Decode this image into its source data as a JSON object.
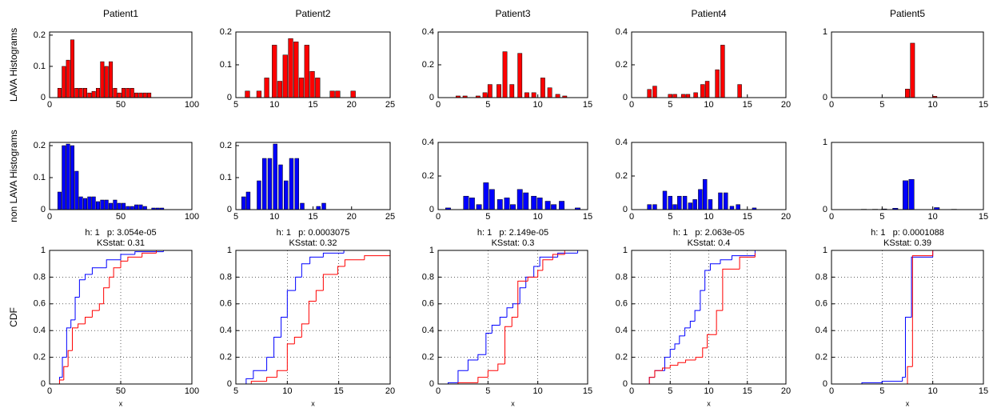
{
  "chart_data": [
    {
      "type": "bar",
      "title": "Patient1",
      "ylabel": "LAVA Histograms",
      "color": "#ff0000",
      "x": [
        7,
        10,
        13,
        16,
        19,
        22,
        25,
        28,
        31,
        34,
        37,
        40,
        43,
        46,
        49,
        52,
        55,
        58,
        61,
        64,
        67,
        70
      ],
      "values": [
        0.03,
        0.1,
        0.12,
        0.185,
        0.03,
        0.03,
        0.03,
        0.015,
        0.02,
        0.03,
        0.115,
        0.1,
        0.115,
        0.03,
        0.015,
        0.03,
        0.03,
        0.03,
        0.015,
        0.015,
        0.015,
        0.015
      ],
      "xlim": [
        0,
        100
      ],
      "xticks": [
        0,
        50,
        100
      ],
      "ylim": [
        0,
        0.21
      ],
      "yticks": [
        0,
        0.1,
        0.2
      ]
    },
    {
      "type": "bar",
      "title": "Patient2",
      "color": "#ff0000",
      "x": [
        6.5,
        8,
        9,
        10,
        10.7,
        11.4,
        12.1,
        12.8,
        13.5,
        14.2,
        14.9,
        15.6,
        17.5,
        18.2,
        20.2
      ],
      "values": [
        0.02,
        0.02,
        0.06,
        0.16,
        0.05,
        0.13,
        0.18,
        0.17,
        0.06,
        0.16,
        0.08,
        0.06,
        0.02,
        0.02,
        0.02
      ],
      "xlim": [
        5,
        25
      ],
      "xticks": [
        5,
        10,
        15,
        20,
        25
      ],
      "ylim": [
        0,
        0.2
      ],
      "yticks": [
        0,
        0.1,
        0.2
      ]
    },
    {
      "type": "bar",
      "title": "Patient3",
      "color": "#ff0000",
      "x": [
        2,
        2.7,
        4,
        4.7,
        5.2,
        6.1,
        6.7,
        7.4,
        8.2,
        8.9,
        9.6,
        10.5,
        11.2,
        12,
        12.7
      ],
      "values": [
        0.01,
        0.01,
        0.01,
        0.03,
        0.08,
        0.08,
        0.28,
        0.08,
        0.27,
        0.03,
        0.03,
        0.12,
        0.06,
        0.02,
        0.01
      ],
      "xlim": [
        0,
        15
      ],
      "xticks": [
        0,
        5,
        10,
        15
      ],
      "ylim": [
        0,
        0.4
      ],
      "yticks": [
        0,
        0.2,
        0.4
      ]
    },
    {
      "type": "bar",
      "title": "Patient4",
      "color": "#ff0000",
      "x": [
        2.3,
        3,
        5,
        5.6,
        6.7,
        7.3,
        8.3,
        9.2,
        9.8,
        11.1,
        11.8,
        14
      ],
      "values": [
        0.05,
        0.07,
        0.02,
        0.02,
        0.02,
        0.02,
        0.03,
        0.08,
        0.1,
        0.17,
        0.32,
        0.08
      ],
      "xlim": [
        0,
        20
      ],
      "xticks": [
        0,
        5,
        10,
        15,
        20
      ],
      "ylim": [
        0,
        0.4
      ],
      "yticks": [
        0,
        0.2,
        0.4
      ]
    },
    {
      "type": "bar",
      "title": "Patient5",
      "color": "#ff0000",
      "x": [
        7.5,
        8,
        10.2
      ],
      "values": [
        0.13,
        0.83,
        0.02
      ],
      "xlim": [
        0,
        15
      ],
      "xticks": [
        0,
        5,
        10,
        15
      ],
      "ylim": [
        0,
        1
      ],
      "yticks": [
        0,
        1
      ]
    },
    {
      "type": "bar",
      "ylabel": "non LAVA Histograms",
      "color": "#0000ff",
      "x": [
        7,
        10,
        13,
        16,
        19,
        22,
        25,
        28,
        31,
        34,
        37,
        40,
        43,
        46,
        49,
        52,
        55,
        58,
        61,
        64,
        67,
        73,
        76,
        79
      ],
      "values": [
        0.055,
        0.2,
        0.205,
        0.2,
        0.12,
        0.04,
        0.035,
        0.04,
        0.04,
        0.025,
        0.03,
        0.03,
        0.02,
        0.03,
        0.02,
        0.02,
        0.01,
        0.01,
        0.015,
        0.015,
        0.01,
        0.005,
        0.005,
        0.005
      ],
      "xlim": [
        0,
        100
      ],
      "xticks": [
        0,
        50,
        100
      ],
      "ylim": [
        0,
        0.21
      ],
      "yticks": [
        0,
        0.1,
        0.2
      ]
    },
    {
      "type": "bar",
      "color": "#0000ff",
      "x": [
        6,
        6.6,
        8,
        8.7,
        9.4,
        10.1,
        10.8,
        11.5,
        12.2,
        12.9,
        13.6,
        15.7,
        16.4
      ],
      "values": [
        0.04,
        0.055,
        0.09,
        0.16,
        0.16,
        0.205,
        0.14,
        0.09,
        0.16,
        0.16,
        0.02,
        0.01,
        0.02
      ],
      "xlim": [
        5,
        25
      ],
      "xticks": [
        5,
        10,
        15,
        20,
        25
      ],
      "ylim": [
        0,
        0.21
      ],
      "yticks": [
        0,
        0.1,
        0.2
      ]
    },
    {
      "type": "bar",
      "color": "#0000ff",
      "x": [
        1,
        2.8,
        3.4,
        4.1,
        4.8,
        5.4,
        6.2,
        6.9,
        7.5,
        8.2,
        8.8,
        9.6,
        10.2,
        11,
        11.6,
        12.4,
        14
      ],
      "values": [
        0.01,
        0.08,
        0.07,
        0.03,
        0.16,
        0.12,
        0.06,
        0.07,
        0.03,
        0.12,
        0.1,
        0.08,
        0.07,
        0.05,
        0.03,
        0.05,
        0.01
      ],
      "xlim": [
        0,
        15
      ],
      "xticks": [
        0,
        5,
        10,
        15
      ],
      "ylim": [
        0,
        0.4
      ],
      "yticks": [
        0,
        0.2,
        0.4
      ]
    },
    {
      "type": "bar",
      "color": "#0000ff",
      "x": [
        2.3,
        3,
        4.3,
        5,
        5.6,
        6.2,
        6.9,
        7.6,
        8.2,
        8.9,
        9.5,
        10.2,
        11.5,
        12.2,
        13,
        13.8,
        15.9
      ],
      "values": [
        0.03,
        0.03,
        0.11,
        0.08,
        0.03,
        0.08,
        0.08,
        0.04,
        0.06,
        0.12,
        0.18,
        0.06,
        0.1,
        0.1,
        0.02,
        0.03,
        0.01
      ],
      "xlim": [
        0,
        20
      ],
      "xticks": [
        0,
        5,
        10,
        15,
        20
      ],
      "ylim": [
        0,
        0.4
      ],
      "yticks": [
        0,
        0.2,
        0.4
      ]
    },
    {
      "type": "bar",
      "color": "#0000ff",
      "x": [
        3.2,
        4.3,
        5.2,
        6.3,
        7.3,
        7.9,
        10.4,
        12.1
      ],
      "values": [
        0.005,
        0.005,
        0.01,
        0.02,
        0.43,
        0.45,
        0.03,
        0.005
      ],
      "xlim": [
        0,
        15
      ],
      "xticks": [
        0,
        5,
        10,
        15
      ],
      "ylim": [
        0,
        1
      ],
      "yticks": [
        0,
        1
      ]
    },
    {
      "type": "line",
      "title": "h: 1   p: 3.054e-05",
      "subtitle": "KSstat: 0.31",
      "ylabel": "CDF",
      "xlabel": "x",
      "grid": true,
      "series": [
        {
          "color": "#0000ff",
          "x": [
            5,
            7,
            9,
            12,
            15,
            18,
            21,
            25,
            30,
            40,
            50,
            60,
            80
          ],
          "values": [
            0,
            0.05,
            0.2,
            0.42,
            0.48,
            0.65,
            0.78,
            0.82,
            0.87,
            0.93,
            0.97,
            0.99,
            1
          ]
        },
        {
          "color": "#ff0000",
          "x": [
            7,
            10,
            13,
            16,
            20,
            25,
            30,
            35,
            38,
            42,
            45,
            50,
            55,
            65,
            75
          ],
          "values": [
            0.03,
            0.13,
            0.25,
            0.42,
            0.45,
            0.5,
            0.55,
            0.6,
            0.72,
            0.8,
            0.87,
            0.92,
            0.95,
            0.98,
            1
          ]
        }
      ],
      "xlim": [
        0,
        100
      ],
      "xticks": [
        0,
        50,
        100
      ],
      "ylim": [
        0,
        1
      ],
      "yticks": [
        0,
        0.2,
        0.4,
        0.6,
        0.8,
        1
      ]
    },
    {
      "type": "line",
      "title": "h: 1   p: 0.0003075",
      "subtitle": "KSstat: 0.32",
      "xlabel": "x",
      "grid": true,
      "series": [
        {
          "color": "#0000ff",
          "x": [
            6,
            6.7,
            8,
            8.7,
            9.4,
            10,
            10.8,
            11.4,
            12.2,
            13.5,
            15.5
          ],
          "values": [
            0.04,
            0.1,
            0.2,
            0.35,
            0.5,
            0.7,
            0.8,
            0.9,
            0.95,
            0.98,
            1
          ]
        },
        {
          "color": "#ff0000",
          "x": [
            6.5,
            8,
            9,
            10,
            10.7,
            11.4,
            12.1,
            12.8,
            13.5,
            14.9,
            15.6,
            17.5,
            20
          ],
          "values": [
            0.02,
            0.05,
            0.1,
            0.3,
            0.35,
            0.45,
            0.62,
            0.7,
            0.82,
            0.88,
            0.93,
            0.96,
            0.98
          ]
        }
      ],
      "xlim": [
        5,
        20
      ],
      "xticks": [
        5,
        10,
        15,
        20
      ],
      "ylim": [
        0,
        1
      ],
      "yticks": [
        0,
        0.2,
        0.4,
        0.6,
        0.8,
        1
      ]
    },
    {
      "type": "line",
      "title": "h: 1   p: 2.149e-05",
      "subtitle": "KSstat: 0.3",
      "xlabel": "x",
      "grid": true,
      "series": [
        {
          "color": "#0000ff",
          "x": [
            1,
            2,
            3,
            4,
            4.8,
            5.4,
            6.2,
            6.9,
            7.5,
            8.2,
            8.8,
            9.6,
            10.2,
            12,
            14
          ],
          "values": [
            0.01,
            0.1,
            0.18,
            0.22,
            0.38,
            0.44,
            0.5,
            0.57,
            0.6,
            0.72,
            0.8,
            0.88,
            0.95,
            0.98,
            1
          ]
        },
        {
          "color": "#ff0000",
          "x": [
            2,
            4,
            5,
            6,
            6.7,
            7.4,
            8,
            9,
            10,
            10.5,
            11.5,
            12.7
          ],
          "values": [
            0.01,
            0.05,
            0.1,
            0.15,
            0.43,
            0.5,
            0.77,
            0.8,
            0.85,
            0.93,
            0.97,
            1
          ]
        }
      ],
      "xlim": [
        0,
        15
      ],
      "xticks": [
        0,
        5,
        10,
        15
      ],
      "ylim": [
        0,
        1
      ],
      "yticks": [
        0,
        0.2,
        0.4,
        0.6,
        0.8,
        1
      ]
    },
    {
      "type": "line",
      "title": "h: 1   p: 2.063e-05",
      "subtitle": "KSstat: 0.4",
      "xlabel": "x",
      "grid": true,
      "series": [
        {
          "color": "#0000ff",
          "x": [
            2.3,
            3,
            4.3,
            5,
            5.6,
            6.2,
            6.9,
            7.6,
            8.2,
            8.9,
            9.5,
            10.2,
            11.5,
            13,
            16
          ],
          "values": [
            0.05,
            0.1,
            0.2,
            0.26,
            0.3,
            0.36,
            0.42,
            0.47,
            0.55,
            0.7,
            0.85,
            0.9,
            0.93,
            0.96,
            1
          ]
        },
        {
          "color": "#ff0000",
          "x": [
            2.3,
            3,
            4,
            5,
            6,
            7,
            8.3,
            9.2,
            9.8,
            11,
            11.8,
            14,
            16
          ],
          "values": [
            0.05,
            0.1,
            0.12,
            0.14,
            0.16,
            0.18,
            0.2,
            0.27,
            0.37,
            0.55,
            0.86,
            0.95,
            0.98
          ]
        }
      ],
      "xlim": [
        0,
        20
      ],
      "xticks": [
        0,
        5,
        10,
        15,
        20
      ],
      "ylim": [
        0,
        1
      ],
      "yticks": [
        0,
        0.2,
        0.4,
        0.6,
        0.8,
        1
      ]
    },
    {
      "type": "line",
      "title": "h: 1   p: 0.0001088",
      "subtitle": "KSstat: 0.39",
      "xlabel": "x",
      "grid": true,
      "series": [
        {
          "color": "#0000ff",
          "x": [
            3,
            5,
            7,
            7.3,
            7.9,
            10
          ],
          "values": [
            0.01,
            0.02,
            0.05,
            0.5,
            0.95,
            1
          ]
        },
        {
          "color": "#ff0000",
          "x": [
            7.5,
            8,
            10
          ],
          "values": [
            0.13,
            0.96,
            1
          ]
        }
      ],
      "xlim": [
        0,
        15
      ],
      "xticks": [
        0,
        5,
        10,
        15
      ],
      "ylim": [
        0,
        1
      ],
      "yticks": [
        0,
        0.2,
        0.4,
        0.6,
        0.8,
        1
      ]
    }
  ]
}
